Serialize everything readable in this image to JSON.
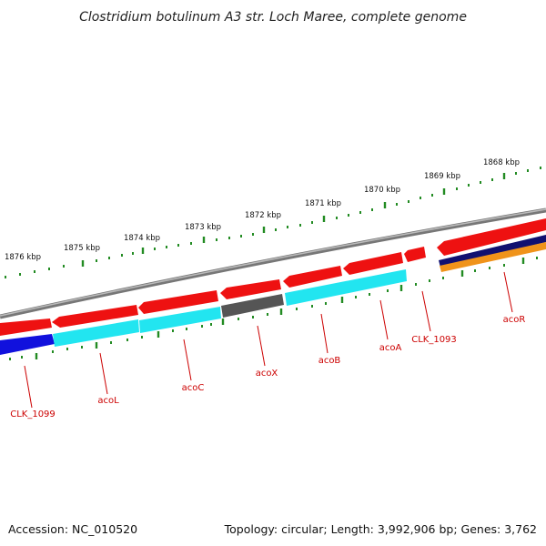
{
  "title": "Clostridium botulinum A3 str. Loch Maree, complete genome",
  "footer": {
    "accession": "Accession: NC_010520",
    "summary": "Topology: circular; Length: 3,992,906 bp; Genes: 3,762"
  },
  "colors": {
    "backbone": "#888888",
    "tick": "#228b22",
    "label": "#cc0000",
    "red": "#ee1111",
    "cyan": "#22e5f0",
    "gray": "#555555",
    "blue": "#1111dd",
    "navy": "#101070",
    "orange": "#f0931a"
  },
  "ticks": [
    {
      "label": "1876 kbp"
    },
    {
      "label": "1875 kbp"
    },
    {
      "label": "1874 kbp"
    },
    {
      "label": "1873 kbp"
    },
    {
      "label": "1872 kbp"
    },
    {
      "label": "1871 kbp"
    },
    {
      "label": "1870 kbp"
    },
    {
      "label": "1869 kbp"
    },
    {
      "label": "1868 kbp"
    }
  ],
  "gene_labels": [
    {
      "name": "CLK_1099"
    },
    {
      "name": "acoL"
    },
    {
      "name": "acoC"
    },
    {
      "name": "acoX"
    },
    {
      "name": "acoB"
    },
    {
      "name": "acoA"
    },
    {
      "name": "CLK_1093"
    },
    {
      "name": "acoR"
    }
  ]
}
